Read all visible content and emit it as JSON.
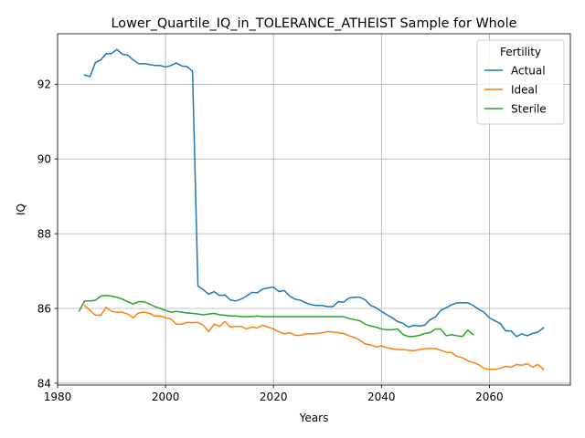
{
  "chart_data": {
    "type": "line",
    "title": "Lower_Quartile_IQ_in_TOLERANCE_ATHEIST Sample for Whole",
    "xlabel": "Years",
    "ylabel": "IQ",
    "xlim": [
      1980,
      2075
    ],
    "ylim": [
      83.95,
      93.35
    ],
    "xticks": [
      1980,
      2000,
      2020,
      2040,
      2060
    ],
    "yticks": [
      84,
      86,
      88,
      90,
      92
    ],
    "grid": true,
    "legend": {
      "title": "Fertility",
      "placement": "top-right"
    },
    "series": [
      {
        "name": "Actual",
        "color": "#1f77b4",
        "x": [
          1985,
          1986,
          1987,
          1988,
          1989,
          1990,
          1991,
          1992,
          1993,
          1994,
          1995,
          1996,
          1997,
          1998,
          1999,
          2000,
          2001,
          2002,
          2003,
          2004,
          2005,
          2006,
          2007,
          2008,
          2009,
          2010,
          2011,
          2012,
          2013,
          2014,
          2015,
          2016,
          2017,
          2018,
          2019,
          2020,
          2021,
          2022,
          2023,
          2024,
          2025,
          2026,
          2027,
          2028,
          2029,
          2030,
          2031,
          2032,
          2033,
          2034,
          2035,
          2036,
          2037,
          2038,
          2039,
          2040,
          2041,
          2042,
          2043,
          2044,
          2045,
          2046,
          2047,
          2048,
          2049,
          2050,
          2051,
          2052,
          2053,
          2054,
          2055,
          2056,
          2057,
          2058,
          2059,
          2060,
          2061,
          2062,
          2063,
          2064,
          2065,
          2066,
          2067,
          2068,
          2069,
          2070
        ],
        "y": [
          92.25,
          92.2,
          92.58,
          92.65,
          92.82,
          92.82,
          92.93,
          92.8,
          92.78,
          92.65,
          92.55,
          92.55,
          92.53,
          92.5,
          92.5,
          92.46,
          92.5,
          92.57,
          92.49,
          92.47,
          92.35,
          86.6,
          86.5,
          86.38,
          86.45,
          86.35,
          86.36,
          86.23,
          86.2,
          86.25,
          86.33,
          86.43,
          86.42,
          86.52,
          86.55,
          86.57,
          86.45,
          86.48,
          86.33,
          86.25,
          86.22,
          86.15,
          86.1,
          86.08,
          86.08,
          86.05,
          86.05,
          86.18,
          86.17,
          86.28,
          86.3,
          86.3,
          86.23,
          86.08,
          86.02,
          85.92,
          85.83,
          85.75,
          85.65,
          85.6,
          85.5,
          85.55,
          85.53,
          85.55,
          85.7,
          85.77,
          85.95,
          86.02,
          86.1,
          86.15,
          86.15,
          86.15,
          86.08,
          85.98,
          85.9,
          85.75,
          85.67,
          85.6,
          85.4,
          85.4,
          85.25,
          85.32,
          85.27,
          85.33,
          85.37,
          85.48
        ]
      },
      {
        "name": "Ideal",
        "color": "#ff7f0e",
        "x": [
          1985,
          1986,
          1987,
          1988,
          1989,
          1990,
          1991,
          1992,
          1993,
          1994,
          1995,
          1996,
          1997,
          1998,
          1999,
          2000,
          2001,
          2002,
          2003,
          2004,
          2005,
          2006,
          2007,
          2008,
          2009,
          2010,
          2011,
          2012,
          2013,
          2014,
          2015,
          2016,
          2017,
          2018,
          2019,
          2020,
          2021,
          2022,
          2023,
          2024,
          2025,
          2026,
          2027,
          2028,
          2029,
          2030,
          2031,
          2032,
          2033,
          2034,
          2035,
          2036,
          2037,
          2038,
          2039,
          2040,
          2041,
          2042,
          2043,
          2044,
          2045,
          2046,
          2047,
          2048,
          2049,
          2050,
          2051,
          2052,
          2053,
          2054,
          2055,
          2056,
          2057,
          2058,
          2059,
          2060,
          2061,
          2062,
          2063,
          2064,
          2065,
          2066,
          2067,
          2068,
          2069,
          2070
        ],
        "y": [
          86.08,
          85.95,
          85.82,
          85.82,
          86.03,
          85.92,
          85.9,
          85.9,
          85.85,
          85.75,
          85.88,
          85.9,
          85.87,
          85.8,
          85.8,
          85.75,
          85.72,
          85.58,
          85.58,
          85.63,
          85.62,
          85.63,
          85.55,
          85.38,
          85.58,
          85.52,
          85.65,
          85.5,
          85.52,
          85.52,
          85.45,
          85.5,
          85.48,
          85.55,
          85.5,
          85.45,
          85.38,
          85.32,
          85.35,
          85.28,
          85.28,
          85.32,
          85.32,
          85.33,
          85.35,
          85.38,
          85.37,
          85.35,
          85.33,
          85.27,
          85.22,
          85.15,
          85.05,
          85.03,
          84.97,
          85.0,
          84.95,
          84.92,
          84.9,
          84.9,
          84.88,
          84.87,
          84.9,
          84.92,
          84.93,
          84.93,
          84.88,
          84.83,
          84.82,
          84.72,
          84.68,
          84.6,
          84.55,
          84.5,
          84.4,
          84.37,
          84.37,
          84.4,
          84.45,
          84.43,
          84.5,
          84.48,
          84.52,
          84.43,
          84.5,
          84.37
        ]
      },
      {
        "name": "Sterile",
        "color": "#2ca02c",
        "x": [
          1984,
          1985,
          1986,
          1987,
          1988,
          1989,
          1990,
          1991,
          1992,
          1993,
          1994,
          1995,
          1996,
          1997,
          1998,
          1999,
          2000,
          2001,
          2002,
          2003,
          2004,
          2005,
          2006,
          2007,
          2008,
          2009,
          2010,
          2011,
          2012,
          2013,
          2014,
          2015,
          2016,
          2017,
          2018,
          2019,
          2020,
          2021,
          2022,
          2023,
          2024,
          2025,
          2026,
          2027,
          2028,
          2029,
          2030,
          2031,
          2032,
          2033,
          2034,
          2035,
          2036,
          2037,
          2038,
          2039,
          2040,
          2041,
          2042,
          2043,
          2044,
          2045,
          2046,
          2047,
          2048,
          2049,
          2050,
          2051,
          2052,
          2053,
          2054,
          2055,
          2056,
          2057
        ],
        "y": [
          85.93,
          86.2,
          86.2,
          86.22,
          86.33,
          86.35,
          86.33,
          86.3,
          86.25,
          86.18,
          86.12,
          86.18,
          86.18,
          86.12,
          86.05,
          86.0,
          85.95,
          85.9,
          85.92,
          85.9,
          85.88,
          85.87,
          85.85,
          85.83,
          85.85,
          85.87,
          85.83,
          85.82,
          85.8,
          85.8,
          85.78,
          85.78,
          85.78,
          85.8,
          85.78,
          85.78,
          85.78,
          85.78,
          85.78,
          85.78,
          85.78,
          85.78,
          85.78,
          85.78,
          85.78,
          85.78,
          85.78,
          85.78,
          85.78,
          85.78,
          85.73,
          85.7,
          85.67,
          85.58,
          85.53,
          85.5,
          85.45,
          85.43,
          85.43,
          85.45,
          85.3,
          85.25,
          85.25,
          85.28,
          85.33,
          85.35,
          85.45,
          85.45,
          85.27,
          85.3,
          85.27,
          85.25,
          85.42,
          85.3
        ]
      }
    ]
  }
}
